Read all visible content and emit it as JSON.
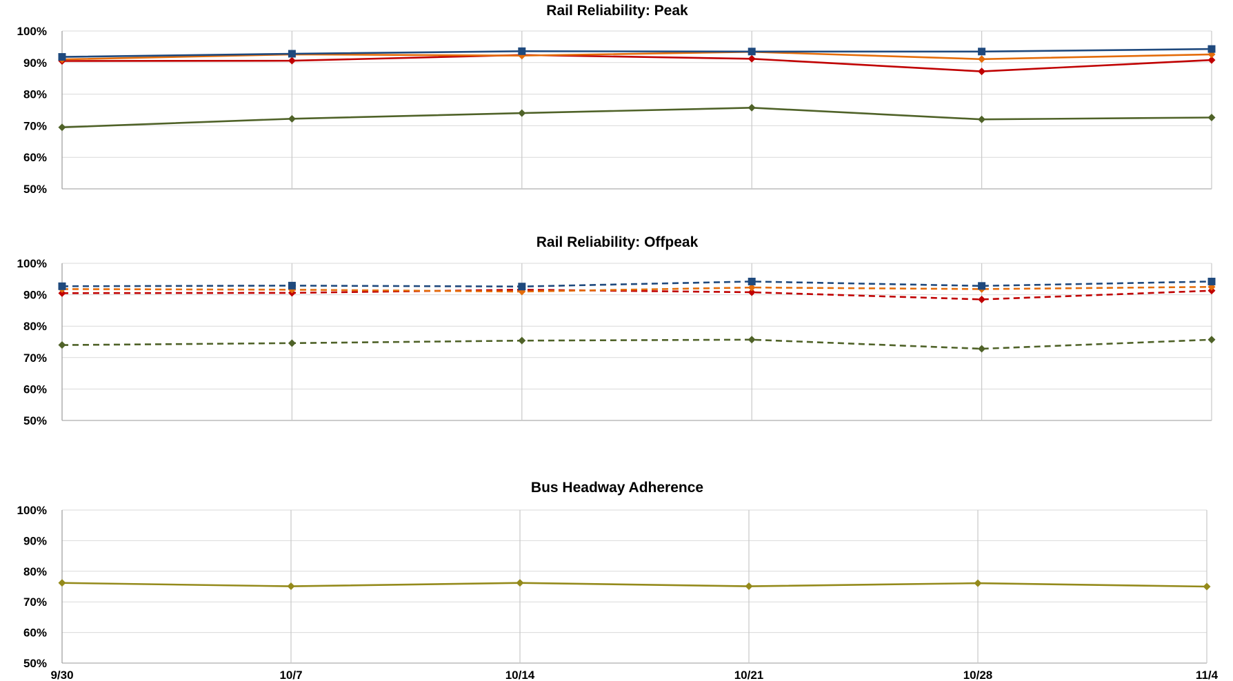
{
  "chart_data": [
    {
      "type": "line",
      "title": "Rail Reliability: Peak",
      "xlabel": "",
      "ylabel": "",
      "categories": [
        "9/30",
        "10/7",
        "10/14",
        "10/21",
        "10/28",
        "11/4"
      ],
      "ylim": [
        0.5,
        1.0
      ],
      "y_ticks": [
        "50%",
        "60%",
        "70%",
        "80%",
        "90%",
        "100%"
      ],
      "grid": true,
      "show_x_labels": false,
      "series": [
        {
          "color": "#4f6228",
          "marker": "diamond",
          "dash": "solid",
          "values": [
            0.695,
            0.722,
            0.74,
            0.757,
            0.72,
            0.726
          ]
        },
        {
          "color": "#c00000",
          "marker": "diamond",
          "dash": "solid",
          "values": [
            0.905,
            0.906,
            0.924,
            0.912,
            0.872,
            0.908
          ]
        },
        {
          "color": "#e46c0a",
          "marker": "diamond",
          "dash": "solid",
          "values": [
            0.91,
            0.926,
            0.922,
            0.934,
            0.911,
            0.926
          ]
        },
        {
          "color": "#1f497d",
          "marker": "square",
          "dash": "solid",
          "values": [
            0.918,
            0.928,
            0.936,
            0.935,
            0.935,
            0.943
          ]
        }
      ]
    },
    {
      "type": "line",
      "title": "Rail Reliability: Offpeak",
      "xlabel": "",
      "ylabel": "",
      "categories": [
        "9/30",
        "10/7",
        "10/14",
        "10/21",
        "10/28",
        "11/4"
      ],
      "ylim": [
        0.5,
        1.0
      ],
      "y_ticks": [
        "50%",
        "60%",
        "70%",
        "80%",
        "90%",
        "100%"
      ],
      "grid": true,
      "show_x_labels": false,
      "series": [
        {
          "color": "#4f6228",
          "marker": "diamond",
          "dash": "dashed",
          "values": [
            0.74,
            0.746,
            0.754,
            0.757,
            0.728,
            0.757
          ]
        },
        {
          "color": "#c00000",
          "marker": "diamond",
          "dash": "dashed",
          "values": [
            0.905,
            0.906,
            0.916,
            0.908,
            0.885,
            0.913
          ]
        },
        {
          "color": "#e46c0a",
          "marker": "diamond",
          "dash": "dashed",
          "values": [
            0.918,
            0.916,
            0.91,
            0.923,
            0.918,
            0.925
          ]
        },
        {
          "color": "#1f497d",
          "marker": "square",
          "dash": "dashed",
          "values": [
            0.927,
            0.929,
            0.926,
            0.942,
            0.928,
            0.942
          ]
        }
      ]
    },
    {
      "type": "line",
      "title": "Bus Headway Adherence",
      "xlabel": "",
      "ylabel": "",
      "categories": [
        "9/30",
        "10/7",
        "10/14",
        "10/21",
        "10/28",
        "11/4"
      ],
      "ylim": [
        0.5,
        1.0
      ],
      "y_ticks": [
        "50%",
        "60%",
        "70%",
        "80%",
        "90%",
        "100%"
      ],
      "grid": true,
      "show_x_labels": true,
      "series": [
        {
          "color": "#948a1b",
          "marker": "diamond",
          "dash": "solid",
          "values": [
            0.762,
            0.751,
            0.762,
            0.751,
            0.761,
            0.75
          ]
        }
      ]
    }
  ]
}
